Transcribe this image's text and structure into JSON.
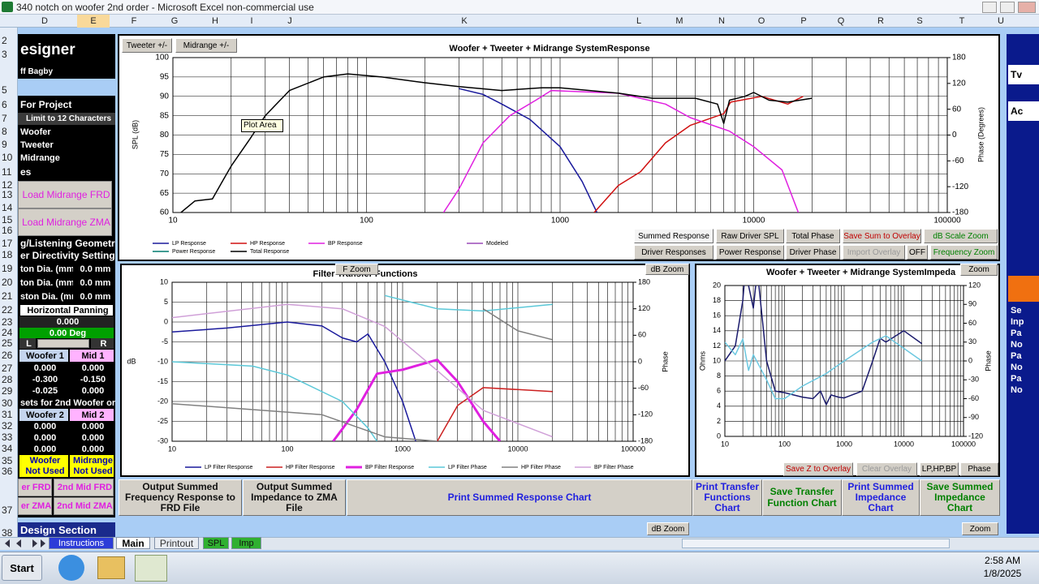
{
  "window": {
    "title": "340 notch on woofer 2nd order - Microsoft Excel non-commercial use"
  },
  "columns": [
    "D",
    "E",
    "F",
    "G",
    "H",
    "I",
    "J",
    "K",
    "L",
    "M",
    "N",
    "O",
    "P",
    "Q",
    "R",
    "S",
    "T",
    "U"
  ],
  "rows": [
    "2",
    "3",
    "5",
    "6",
    "7",
    "8",
    "9",
    "10",
    "11",
    "12",
    "13",
    "14",
    "15",
    "16",
    "17",
    "18",
    "19",
    "20",
    "21",
    "22",
    "23",
    "24",
    "25",
    "26",
    "27",
    "28",
    "29",
    "30",
    "31",
    "32",
    "33",
    "34",
    "35",
    "36",
    "37",
    "38"
  ],
  "left_panel": [
    "esigner",
    "ff Bagby",
    "For Project",
    "Limit to 12 Characters",
    "Woofer",
    "Tweeter",
    "Midrange",
    "es",
    "Load Midrange FRD",
    "Load Midrange ZMA",
    "g/Listening Geometr",
    "er Directivity Settings",
    "ton Dia. (mm",
    "0.0 mm",
    "ton Dia. (mm",
    "0.0 mm",
    "ston Dia. (mm",
    "0.0 mm",
    "Horizontal Panning",
    "0.000",
    "0.00 Deg",
    "L",
    "R",
    "Woofer 1",
    "Mid 1",
    "0.000",
    "0.000",
    "-0.300",
    "-0.150",
    "-0.025",
    "0.000",
    "sets for 2nd Woofer or M",
    "Woofer 2",
    "Mid 2",
    "0.000",
    "0.000",
    "0.000",
    "0.000",
    "0.000",
    "0.000",
    "Woofer",
    "Not Used",
    "Midrange",
    "Not Used",
    "er FRD",
    "2nd Mid FRD",
    "er ZMA",
    "2nd Mid ZMA",
    "Design Section"
  ],
  "tooltip": "Plot Area",
  "charts": [
    {
      "type": "line",
      "title": "Woofer + Tweeter + Midrange  SystemResponse",
      "ylabel": "SPL (dB)",
      "y2label": "Phase (Degrees)",
      "x_log": true,
      "grid": true,
      "xlim": [
        10,
        100000
      ],
      "xticks": [
        10,
        100,
        1000,
        10000,
        100000
      ],
      "ylim": [
        60,
        100
      ],
      "yticks": [
        60,
        65,
        70,
        75,
        80,
        85,
        90,
        95,
        100
      ],
      "y2lim": [
        -180,
        180
      ],
      "y2ticks": [
        -180,
        -120,
        -60,
        0,
        60,
        120,
        180
      ],
      "series": [
        {
          "name": "LP Response",
          "color": "#1a1a9c",
          "x": [
            300,
            400,
            500,
            700,
            1000,
            1300,
            1550
          ],
          "values": [
            92,
            90.5,
            88,
            84,
            77,
            68,
            60
          ]
        },
        {
          "name": "HP Response",
          "color": "#d01010",
          "x": [
            1500,
            2000,
            2600,
            3500,
            4700,
            7000,
            7600,
            11000,
            15000,
            18000
          ],
          "values": [
            60,
            67,
            70.5,
            78,
            82.5,
            85.5,
            88.5,
            90,
            88,
            90
          ]
        },
        {
          "name": "BP Response",
          "color": "#e020e0",
          "x": [
            250,
            300,
            400,
            550,
            750,
            900,
            2000,
            3500,
            4700,
            7500,
            10000,
            14000,
            17000
          ],
          "values": [
            60,
            66,
            78,
            85,
            89,
            91.5,
            90.8,
            88,
            84.5,
            81,
            77,
            71,
            60
          ]
        },
        {
          "name": "Power Response",
          "color": "#007a6e",
          "x": [],
          "values": []
        },
        {
          "name": "Total Response",
          "color": "#000000",
          "x": [
            11,
            13,
            16,
            18,
            20,
            25,
            30,
            40,
            60,
            80,
            120,
            200,
            300,
            500,
            800,
            1000,
            2000,
            3000,
            5000,
            6500,
            7000,
            7500,
            9000,
            10000,
            12000,
            15000,
            20000
          ],
          "values": [
            60,
            63,
            63.5,
            68,
            72,
            79,
            85,
            91.5,
            95,
            95.8,
            95,
            93.5,
            92.5,
            91.5,
            92.2,
            92.2,
            90.8,
            89.5,
            89.5,
            88,
            83,
            89,
            90,
            91,
            89,
            88.5,
            89.5
          ]
        },
        {
          "name": "Modeled",
          "color": "#9a4ab8",
          "x": [],
          "values": []
        }
      ],
      "buttons": [
        "Tweeter +/-",
        "Midrange +/-",
        "Summed Response",
        "Raw Driver SPL",
        "Total Phase",
        "Save Sum to Overlay",
        "dB Scale Zoom",
        "Driver Responses",
        "Power Response",
        "Driver Phase",
        "Import Overlay",
        "OFF",
        "Frequency Zoom"
      ]
    },
    {
      "type": "line",
      "title": "Filter Transfer Functions",
      "ylabel": "dB",
      "y2label": "Phase",
      "x_log": true,
      "grid": true,
      "xlim": [
        10,
        100000
      ],
      "xticks": [
        10,
        100,
        1000,
        10000,
        100000
      ],
      "ylim": [
        -30,
        10
      ],
      "yticks": [
        -30,
        -25,
        -20,
        -15,
        -10,
        -5,
        0,
        5,
        10
      ],
      "y2lim": [
        -180,
        180
      ],
      "y2ticks": [
        -180,
        -120,
        -60,
        0,
        60,
        120,
        180
      ],
      "series": [
        {
          "name": "LP Filter Response",
          "color": "#1a1a9c",
          "x": [
            10,
            30,
            100,
            200,
            300,
            400,
            500,
            700,
            1000,
            1300
          ],
          "values": [
            -2.5,
            -1.5,
            0,
            -1,
            -4,
            -5,
            -3,
            -10,
            -20,
            -30
          ]
        },
        {
          "name": "HP Filter Response",
          "color": "#cc2020",
          "x": [
            2000,
            3000,
            5000,
            10000,
            20000
          ],
          "values": [
            -30,
            -21,
            -16.5,
            -17,
            -17.5
          ]
        },
        {
          "name": "BP Filter Response",
          "color": "#e020e0",
          "line_width": 3,
          "x": [
            250,
            400,
            600,
            1000,
            2000,
            3000,
            5000,
            7000
          ],
          "values": [
            -30,
            -22,
            -13,
            -12,
            -9.5,
            -15,
            -25,
            -30
          ]
        },
        {
          "name": "LP Filter Phase",
          "color": "#5bc8d8",
          "axis": "y2",
          "x": [
            10,
            50,
            100,
            300,
            500,
            600,
            600,
            700,
            2000,
            5000,
            20000
          ],
          "values": [
            0,
            -10,
            -30,
            -90,
            -150,
            -180,
            null,
            150,
            120,
            115,
            130
          ]
        },
        {
          "name": "HP Filter Phase",
          "color": "#808080",
          "axis": "y2",
          "x": [
            10,
            200,
            700,
            2000,
            2000,
            5000,
            10000,
            20000
          ],
          "values": [
            -95,
            -120,
            -170,
            -180,
            null,
            120,
            70,
            50
          ]
        },
        {
          "name": "BP Filter Phase",
          "color": "#d0a0d8",
          "axis": "y2",
          "x": [
            10,
            100,
            300,
            700,
            2000,
            5000,
            20000
          ],
          "values": [
            100,
            130,
            120,
            80,
            -20,
            -110,
            -170
          ]
        }
      ],
      "buttons": [
        "F Zoom",
        "dB Zoom"
      ]
    },
    {
      "type": "line",
      "title": "Woofer + Tweeter + Midrange  SystemImpeda",
      "ylabel": "Ohms",
      "y2label": "Phase",
      "x_log": true,
      "grid": true,
      "xlim": [
        10,
        100000
      ],
      "xticks": [
        10,
        100,
        1000,
        10000,
        100000
      ],
      "ylim": [
        0,
        20
      ],
      "yticks": [
        0,
        2,
        4,
        6,
        8,
        10,
        12,
        14,
        16,
        18,
        20
      ],
      "y2lim": [
        -120,
        120
      ],
      "y2ticks": [
        -120,
        -90,
        -60,
        -30,
        0,
        30,
        60,
        90,
        120
      ],
      "series": [
        {
          "color": "#1a1a6c",
          "x": [
            10,
            15,
            20,
            22,
            30,
            35,
            50,
            70,
            100,
            200,
            300,
            400,
            500,
            600,
            800,
            1000,
            2000,
            3000,
            4000,
            5000,
            10000,
            20000
          ],
          "values": [
            10,
            12,
            18,
            22,
            17,
            22,
            10,
            6,
            5.8,
            5.2,
            5,
            6,
            4.2,
            5.5,
            5.2,
            5.1,
            6,
            10,
            13,
            12.5,
            14,
            12.3
          ]
        },
        {
          "color": "#6cc8e0",
          "axis": "y2",
          "x": [
            10,
            15,
            20,
            25,
            30,
            50,
            70,
            100,
            200,
            500,
            1000,
            3000,
            5000,
            10000,
            20000
          ],
          "values": [
            30,
            10,
            35,
            -15,
            10,
            -30,
            -60,
            -60,
            -40,
            -20,
            0,
            30,
            40,
            20,
            0
          ]
        }
      ],
      "buttons": [
        "Zoom",
        "Save Z to Overlay",
        "Clear Overlay",
        "LP,HP,BP",
        "Phase"
      ]
    }
  ],
  "bottom_buttons": [
    "Output Summed Frequency Response to FRD File",
    "Output Summed Impedance to ZMA File",
    "Print Summed Response Chart",
    "Print Transfer Functions Chart",
    "Save Transfer Function Chart",
    "Print Summed Impedance Chart",
    "Save Summed Impedance Chart",
    "dB Zoom",
    "Zoom"
  ],
  "right_panel": [
    "Tv",
    "Ac",
    "Se",
    "Inp",
    "Pa",
    "No",
    "Pa",
    "No",
    "Pa",
    "No"
  ],
  "sheet_tabs": [
    "Instructions",
    "Main",
    "Printout",
    "SPL",
    "Imp"
  ],
  "taskbar": {
    "start": "Start",
    "time": "2:58 AM",
    "date": "1/8/2025"
  }
}
